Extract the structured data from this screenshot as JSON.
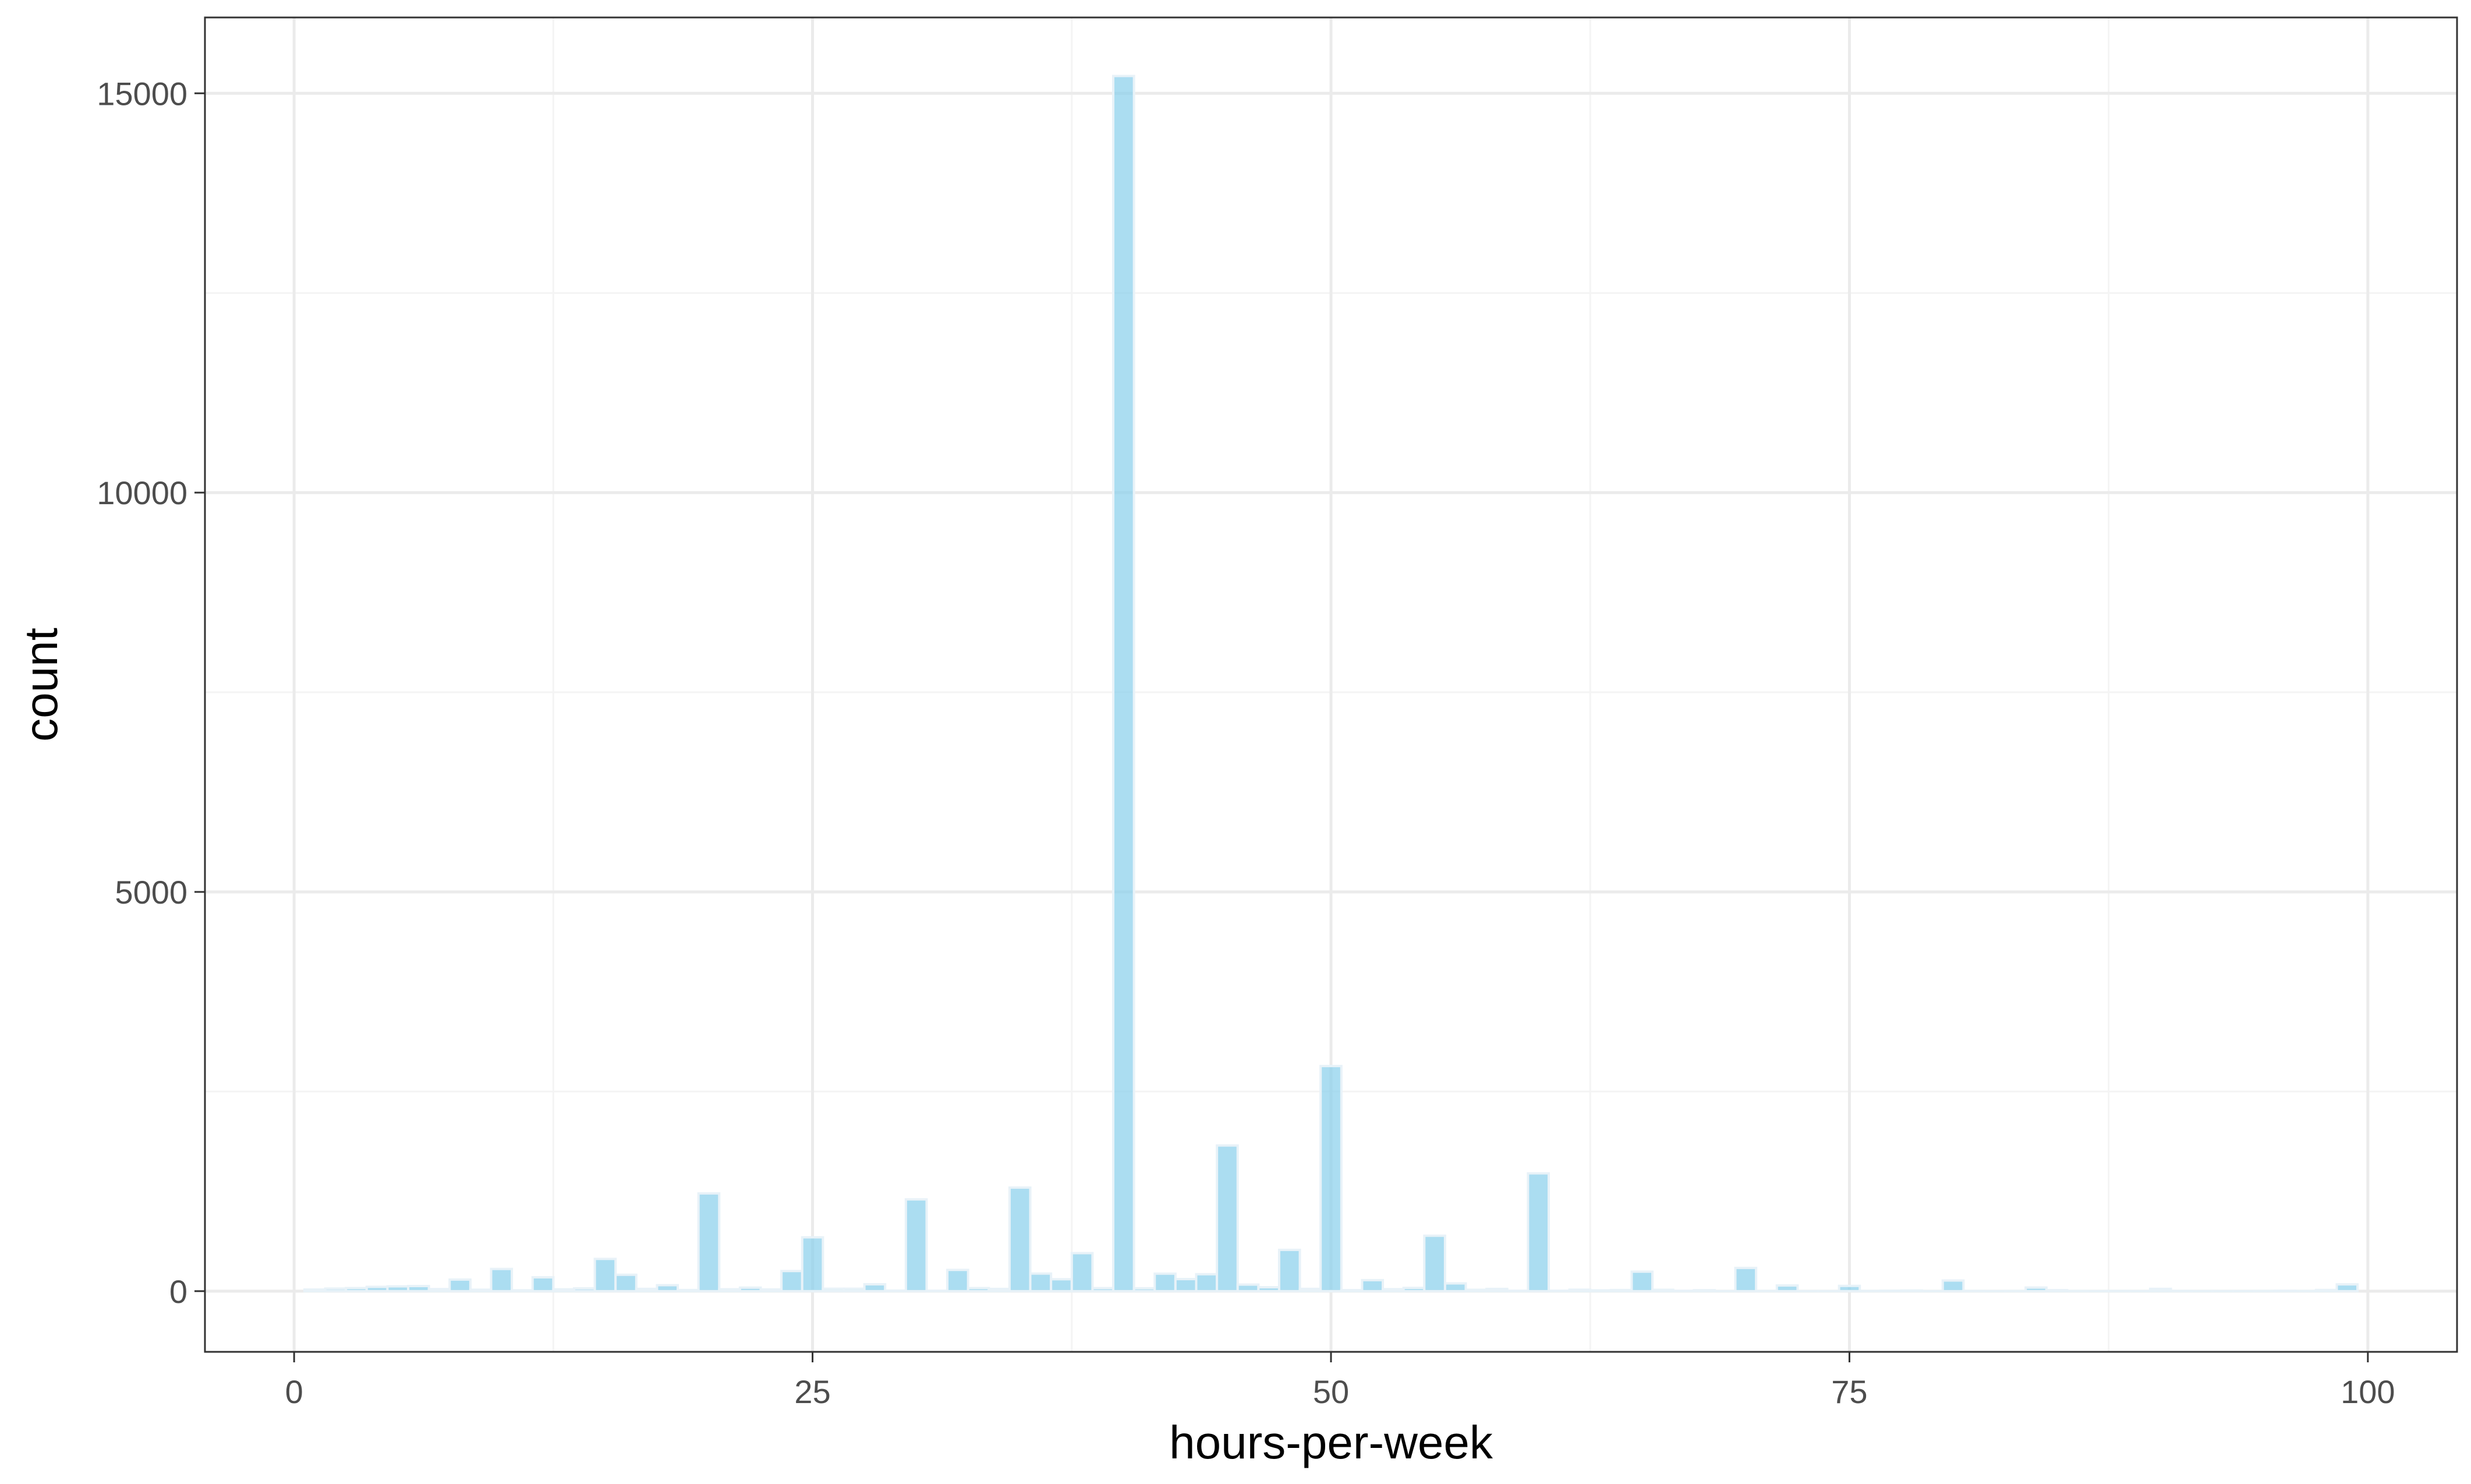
{
  "chart_data": {
    "type": "bar",
    "xlabel": "hours-per-week",
    "ylabel": "count",
    "xlim": [
      -4.3,
      104.3
    ],
    "ylim": [
      -760,
      15950
    ],
    "x_ticks": [
      0,
      25,
      50,
      75,
      100
    ],
    "x_tick_labels": [
      "0",
      "25",
      "50",
      "75",
      "100"
    ],
    "y_ticks": [
      0,
      5000,
      10000,
      15000
    ],
    "y_tick_labels": [
      "0",
      "5000",
      "10000",
      "15000"
    ],
    "y_minor_ticks": [
      2500,
      7500,
      12500
    ],
    "x_minor_ticks": [
      12.5,
      37.5,
      62.5,
      87.5
    ],
    "grid": true,
    "bin_width": 1,
    "colors": {
      "bar_fill": "#87ceeb",
      "bar_outline": "#e8f2f8"
    },
    "x": [
      1,
      2,
      3,
      4,
      5,
      6,
      7,
      8,
      9,
      10,
      11,
      12,
      13,
      14,
      15,
      16,
      17,
      18,
      19,
      20,
      21,
      22,
      23,
      24,
      25,
      26,
      27,
      28,
      29,
      30,
      31,
      32,
      33,
      34,
      35,
      36,
      37,
      38,
      39,
      40,
      41,
      42,
      43,
      44,
      45,
      46,
      47,
      48,
      49,
      50,
      51,
      52,
      53,
      54,
      55,
      56,
      57,
      58,
      59,
      60,
      61,
      62,
      63,
      64,
      65,
      66,
      67,
      68,
      69,
      70,
      71,
      72,
      73,
      74,
      75,
      76,
      77,
      78,
      79,
      80,
      81,
      82,
      83,
      84,
      85,
      86,
      87,
      88,
      89,
      90,
      91,
      92,
      93,
      94,
      95,
      96,
      97,
      98,
      99
    ],
    "values": [
      20,
      32,
      39,
      54,
      60,
      64,
      26,
      145,
      18,
      278,
      11,
      173,
      23,
      34,
      404,
      205,
      29,
      75,
      14,
      1224,
      24,
      44,
      21,
      252,
      674,
      30,
      30,
      86,
      7,
      1149,
      5,
      266,
      39,
      28,
      1297,
      220,
      149,
      476,
      38,
      15217,
      36,
      219,
      151,
      212,
      1824,
      82,
      49,
      517,
      29,
      2819,
      13,
      138,
      25,
      41,
      694,
      97,
      17,
      28,
      5,
      1475,
      5,
      18,
      10,
      14,
      244,
      17,
      4,
      12,
      1,
      291,
      3,
      71,
      1,
      1,
      66,
      3,
      6,
      8,
      1,
      133,
      3,
      1,
      2,
      45,
      13,
      2,
      1,
      3,
      1,
      29,
      3,
      1,
      1,
      1,
      2,
      5,
      2,
      15,
      85
    ]
  }
}
